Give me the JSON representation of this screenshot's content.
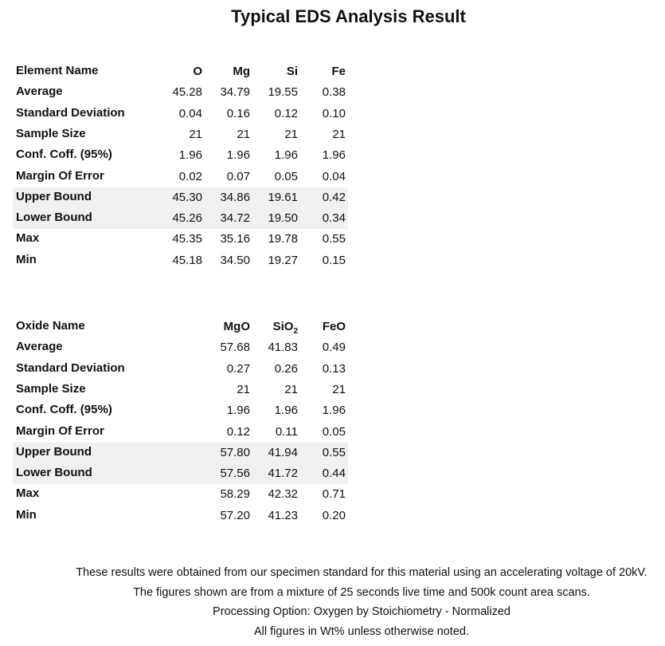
{
  "title": "Typical EDS Analysis Result",
  "element_table": {
    "header_label": "Element Name",
    "columns": [
      "O",
      "Mg",
      "Si",
      "Fe"
    ],
    "rows": [
      {
        "label": "Average",
        "values": [
          "45.28",
          "34.79",
          "19.55",
          "0.38"
        ]
      },
      {
        "label": "Standard Deviation",
        "values": [
          "0.04",
          "0.16",
          "0.12",
          "0.10"
        ]
      },
      {
        "label": "Sample Size",
        "values": [
          "21",
          "21",
          "21",
          "21"
        ]
      },
      {
        "label": "Conf. Coff. (95%)",
        "values": [
          "1.96",
          "1.96",
          "1.96",
          "1.96"
        ]
      },
      {
        "label": "Margin Of Error",
        "values": [
          "0.02",
          "0.07",
          "0.05",
          "0.04"
        ]
      },
      {
        "label": "Upper Bound",
        "values": [
          "45.30",
          "34.86",
          "19.61",
          "0.42"
        ],
        "shaded": true
      },
      {
        "label": "Lower Bound",
        "values": [
          "45.26",
          "34.72",
          "19.50",
          "0.34"
        ],
        "shaded": true
      },
      {
        "label": "Max",
        "values": [
          "45.35",
          "35.16",
          "19.78",
          "0.55"
        ]
      },
      {
        "label": "Min",
        "values": [
          "45.18",
          "34.50",
          "19.27",
          "0.15"
        ]
      }
    ]
  },
  "oxide_table": {
    "header_label": "Oxide Name",
    "columns": [
      "MgO",
      "SiO|2",
      "FeO"
    ],
    "rows": [
      {
        "label": "Average",
        "values": [
          "57.68",
          "41.83",
          "0.49"
        ]
      },
      {
        "label": "Standard Deviation",
        "values": [
          "0.27",
          "0.26",
          "0.13"
        ]
      },
      {
        "label": "Sample Size",
        "values": [
          "21",
          "21",
          "21"
        ]
      },
      {
        "label": "Conf. Coff. (95%)",
        "values": [
          "1.96",
          "1.96",
          "1.96"
        ]
      },
      {
        "label": "Margin Of Error",
        "values": [
          "0.12",
          "0.11",
          "0.05"
        ]
      },
      {
        "label": "Upper Bound",
        "values": [
          "57.80",
          "41.94",
          "0.55"
        ],
        "shaded": true
      },
      {
        "label": "Lower Bound",
        "values": [
          "57.56",
          "41.72",
          "0.44"
        ],
        "shaded": true
      },
      {
        "label": "Max",
        "values": [
          "58.29",
          "42.32",
          "0.71"
        ]
      },
      {
        "label": "Min",
        "values": [
          "57.20",
          "41.23",
          "0.20"
        ]
      }
    ]
  },
  "shade_color": "#f0f0f0",
  "footer": {
    "lines": [
      "These results were obtained from our specimen standard for this material using an accelerating voltage of 20kV.",
      "The figures shown are from a mixture of 25 seconds live time and 500k count area scans.",
      "Processing Option: Oxygen by Stoichiometry - Normalized",
      "All figures in Wt% unless otherwise noted."
    ]
  }
}
